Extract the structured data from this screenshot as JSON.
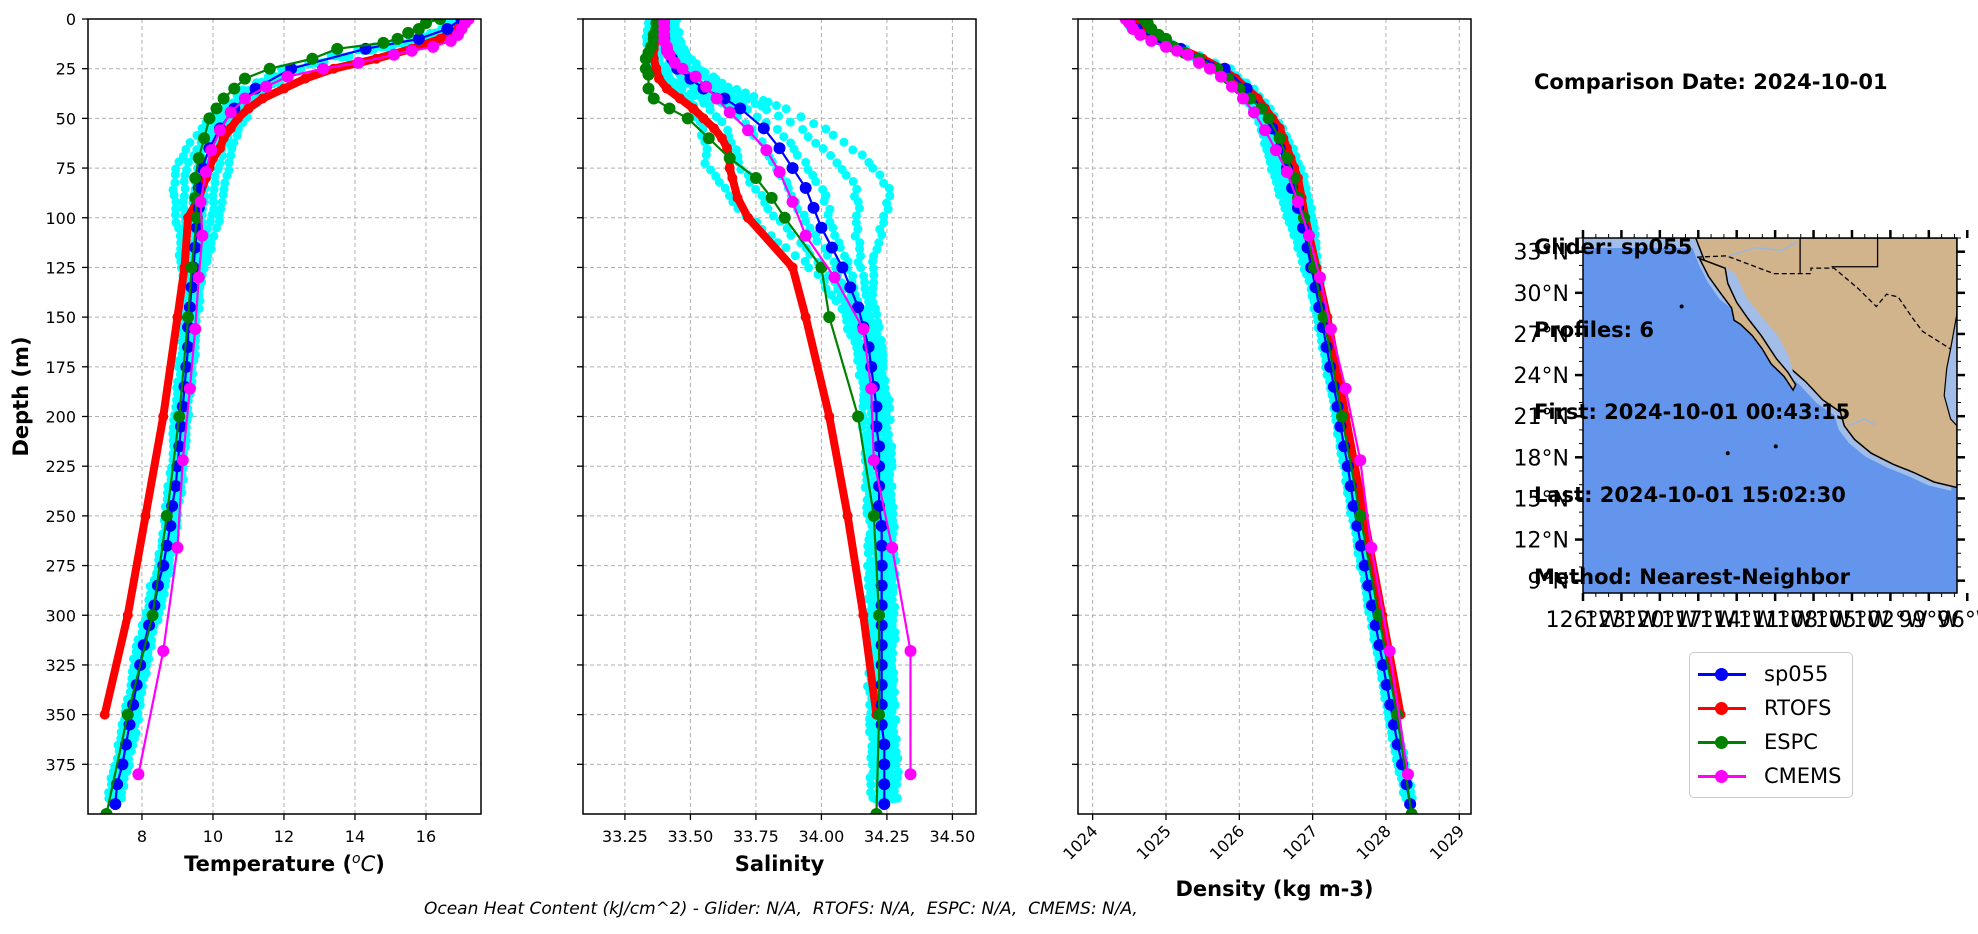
{
  "figure": {
    "info_lines": [
      "Comparison Date: 2024-10-01",
      "",
      "Glider: sp055",
      "Profiles: 6",
      "First: 2024-10-01 00:43:15",
      "Last: 2024-10-01 15:02:30",
      "Method: Nearest-Neighbor"
    ],
    "footer": "Ocean Heat Content (kJ/cm^2) - Glider: N/A,  RTOFS: N/A,  ESPC: N/A,  CMEMS: N/A,",
    "legend": [
      {
        "label": "sp055",
        "color": "#0000ff"
      },
      {
        "label": "RTOFS",
        "color": "#ff0000"
      },
      {
        "label": "ESPC",
        "color": "#008000"
      },
      {
        "label": "CMEMS",
        "color": "#ff00ff"
      }
    ],
    "colors": {
      "glider_profiles_scatter": "#00ffff",
      "grid": "#b0b0b0",
      "ocean": "#6495ed",
      "shelf": "#a2bde8",
      "land": "#d2b48c",
      "rivers": "#9ab6e0"
    }
  },
  "chart_data": [
    {
      "type": "line",
      "panel": "temperature",
      "title": "",
      "xlabel": "Temperature (°C)",
      "ylabel": "Depth (m)",
      "xlim": [
        6.48,
        17.55
      ],
      "ylim": [
        400,
        0
      ],
      "grid": true,
      "xticks": [
        8,
        10,
        12,
        14,
        16
      ],
      "xtick_labels": [
        "8",
        "10",
        "12",
        "14",
        "16"
      ],
      "yticks": [
        0,
        25,
        50,
        75,
        100,
        125,
        150,
        175,
        200,
        225,
        250,
        275,
        300,
        325,
        350,
        375
      ],
      "ytick_labels": [
        "0",
        "25",
        "50",
        "75",
        "100",
        "125",
        "150",
        "175",
        "200",
        "225",
        "250",
        "275",
        "300",
        "325",
        "350",
        "375"
      ],
      "series": [
        {
          "name": "sp055",
          "color": "#0000ff",
          "depth": [
            0,
            5,
            10,
            15,
            25,
            35,
            45,
            55,
            65,
            75,
            85,
            95,
            105,
            115,
            125,
            135,
            145,
            155,
            165,
            175,
            185,
            195,
            205,
            215,
            225,
            235,
            245,
            255,
            265,
            275,
            285,
            295,
            305,
            315,
            325,
            335,
            345,
            355,
            365,
            375,
            385,
            395
          ],
          "values": [
            17.0,
            16.6,
            15.8,
            14.3,
            12.2,
            11.2,
            10.6,
            10.2,
            9.9,
            9.7,
            9.6,
            9.6,
            9.55,
            9.5,
            9.45,
            9.4,
            9.35,
            9.3,
            9.3,
            9.25,
            9.2,
            9.15,
            9.1,
            9.05,
            9.0,
            8.95,
            8.85,
            8.8,
            8.7,
            8.6,
            8.45,
            8.35,
            8.2,
            8.05,
            7.95,
            7.85,
            7.75,
            7.65,
            7.55,
            7.45,
            7.3,
            7.25
          ]
        },
        {
          "name": "RTOFS",
          "color": "#ff0000",
          "depth": [
            0,
            5,
            10,
            15,
            20,
            25,
            30,
            35,
            40,
            45,
            50,
            55,
            60,
            65,
            70,
            75,
            80,
            90,
            100,
            125,
            150,
            200,
            250,
            300,
            350
          ],
          "values": [
            17.1,
            16.9,
            16.4,
            15.6,
            14.6,
            13.4,
            12.6,
            12.0,
            11.4,
            11.0,
            10.7,
            10.5,
            10.3,
            10.2,
            10.0,
            9.9,
            9.8,
            9.6,
            9.3,
            9.2,
            9.0,
            8.6,
            8.1,
            7.6,
            6.95
          ]
        },
        {
          "name": "ESPC",
          "color": "#008000",
          "depth": [
            0,
            2,
            5,
            7,
            10,
            12,
            15,
            20,
            25,
            30,
            35,
            40,
            45,
            50,
            60,
            70,
            80,
            90,
            100,
            125,
            150,
            200,
            250,
            300,
            350,
            400
          ],
          "values": [
            16.4,
            16.0,
            15.8,
            15.5,
            15.2,
            14.8,
            13.5,
            12.8,
            11.6,
            10.9,
            10.6,
            10.3,
            10.1,
            9.9,
            9.75,
            9.6,
            9.5,
            9.5,
            9.55,
            9.4,
            9.3,
            9.05,
            8.7,
            8.3,
            7.6,
            7.0
          ]
        },
        {
          "name": "CMEMS",
          "color": "#ff00ff",
          "depth": [
            0,
            2,
            5,
            8,
            11,
            14,
            16,
            18,
            22,
            25,
            29,
            34,
            40,
            47,
            56,
            66,
            77,
            92,
            109,
            130,
            156,
            186,
            222,
            266,
            318,
            380
          ],
          "values": [
            17.2,
            17.1,
            17.0,
            16.9,
            16.7,
            16.2,
            15.6,
            15.1,
            14.1,
            13.1,
            12.1,
            11.5,
            10.9,
            10.5,
            10.2,
            9.95,
            9.8,
            9.65,
            9.7,
            9.6,
            9.5,
            9.35,
            9.15,
            9.0,
            8.6,
            7.9
          ]
        }
      ]
    },
    {
      "type": "line",
      "panel": "salinity",
      "xlabel": "Salinity",
      "ylabel": "",
      "xlim": [
        33.09,
        34.59
      ],
      "ylim": [
        400,
        0
      ],
      "grid": true,
      "xticks": [
        33.25,
        33.5,
        33.75,
        34.0,
        34.25,
        34.5
      ],
      "xtick_labels": [
        "33.25",
        "33.50",
        "33.75",
        "34.00",
        "34.25",
        "34.50"
      ],
      "yticks": [
        0,
        25,
        50,
        75,
        100,
        125,
        150,
        175,
        200,
        225,
        250,
        275,
        300,
        325,
        350,
        375
      ],
      "series": [
        {
          "name": "sp055",
          "color": "#0000ff",
          "depth": [
            0,
            5,
            10,
            15,
            20,
            25,
            30,
            35,
            40,
            45,
            55,
            65,
            75,
            85,
            95,
            105,
            115,
            125,
            135,
            145,
            155,
            165,
            175,
            185,
            195,
            205,
            215,
            225,
            235,
            245,
            255,
            265,
            275,
            285,
            295,
            305,
            315,
            325,
            335,
            345,
            355,
            365,
            375,
            385,
            395
          ],
          "values": [
            33.39,
            33.39,
            33.4,
            33.41,
            33.43,
            33.45,
            33.5,
            33.55,
            33.63,
            33.69,
            33.78,
            33.84,
            33.89,
            33.94,
            33.97,
            34.0,
            34.04,
            34.08,
            34.11,
            34.14,
            34.16,
            34.18,
            34.19,
            34.2,
            34.21,
            34.21,
            34.22,
            34.22,
            34.22,
            34.22,
            34.23,
            34.23,
            34.23,
            34.23,
            34.23,
            34.23,
            34.23,
            34.23,
            34.23,
            34.23,
            34.23,
            34.24,
            34.24,
            34.24,
            34.24
          ]
        },
        {
          "name": "RTOFS",
          "color": "#ff0000",
          "depth": [
            0,
            5,
            10,
            15,
            20,
            25,
            30,
            35,
            40,
            45,
            50,
            55,
            60,
            65,
            70,
            75,
            80,
            90,
            100,
            125,
            150,
            200,
            250,
            300,
            350
          ],
          "values": [
            33.39,
            33.38,
            33.37,
            33.36,
            33.36,
            33.37,
            33.38,
            33.41,
            33.46,
            33.51,
            33.55,
            33.59,
            33.62,
            33.64,
            33.65,
            33.65,
            33.66,
            33.68,
            33.72,
            33.89,
            33.94,
            34.03,
            34.1,
            34.16,
            34.21
          ]
        },
        {
          "name": "ESPC",
          "color": "#008000",
          "depth": [
            0,
            2,
            5,
            8,
            10,
            14,
            17,
            20,
            25,
            28,
            35,
            40,
            45,
            50,
            60,
            70,
            80,
            90,
            100,
            125,
            150,
            200,
            250,
            300,
            350,
            400
          ],
          "values": [
            33.38,
            33.37,
            33.37,
            33.36,
            33.36,
            33.35,
            33.34,
            33.33,
            33.33,
            33.34,
            33.34,
            33.36,
            33.42,
            33.49,
            33.57,
            33.65,
            33.75,
            33.81,
            33.86,
            34.0,
            34.03,
            34.14,
            34.2,
            34.22,
            34.22,
            34.21
          ]
        },
        {
          "name": "CMEMS",
          "color": "#ff00ff",
          "depth": [
            0,
            2,
            5,
            8,
            11,
            14,
            16,
            18,
            22,
            25,
            29,
            34,
            40,
            47,
            56,
            66,
            77,
            92,
            109,
            130,
            156,
            186,
            222,
            266,
            318,
            380
          ],
          "values": [
            33.4,
            33.4,
            33.4,
            33.4,
            33.4,
            33.41,
            33.41,
            33.42,
            33.44,
            33.47,
            33.52,
            33.56,
            33.6,
            33.65,
            33.72,
            33.79,
            33.84,
            33.89,
            33.94,
            34.05,
            34.16,
            34.19,
            34.2,
            34.27,
            34.34,
            34.34
          ]
        }
      ]
    },
    {
      "type": "line",
      "panel": "density",
      "xlabel": "Density (kg m-3)",
      "ylabel": "",
      "xlim": [
        1023.8,
        1029.16
      ],
      "ylim": [
        400,
        0
      ],
      "grid": true,
      "xticks": [
        1024,
        1025,
        1026,
        1027,
        1028,
        1029
      ],
      "xtick_labels": [
        "1024",
        "1025",
        "1026",
        "1027",
        "1028",
        "1029"
      ],
      "xtick_rotation": 45,
      "yticks": [
        0,
        25,
        50,
        75,
        100,
        125,
        150,
        175,
        200,
        225,
        250,
        275,
        300,
        325,
        350,
        375
      ],
      "series": [
        {
          "name": "sp055",
          "color": "#0000ff",
          "depth": [
            0,
            5,
            10,
            15,
            25,
            35,
            45,
            55,
            65,
            75,
            85,
            95,
            105,
            115,
            125,
            135,
            145,
            155,
            165,
            175,
            185,
            195,
            205,
            215,
            225,
            235,
            245,
            255,
            265,
            275,
            285,
            295,
            305,
            315,
            325,
            335,
            345,
            355,
            365,
            375,
            385,
            395
          ],
          "values": [
            1024.5,
            1024.6,
            1024.9,
            1025.2,
            1025.8,
            1026.1,
            1026.3,
            1026.45,
            1026.55,
            1026.65,
            1026.72,
            1026.8,
            1026.87,
            1026.93,
            1026.98,
            1027.04,
            1027.09,
            1027.14,
            1027.19,
            1027.24,
            1027.29,
            1027.34,
            1027.38,
            1027.43,
            1027.48,
            1027.52,
            1027.56,
            1027.61,
            1027.66,
            1027.71,
            1027.76,
            1027.81,
            1027.86,
            1027.91,
            1027.96,
            1028.01,
            1028.06,
            1028.11,
            1028.16,
            1028.22,
            1028.28,
            1028.33
          ]
        },
        {
          "name": "RTOFS",
          "color": "#ff0000",
          "depth": [
            0,
            5,
            10,
            15,
            20,
            25,
            30,
            35,
            40,
            45,
            50,
            55,
            60,
            65,
            70,
            75,
            80,
            90,
            100,
            125,
            150,
            200,
            250,
            300,
            350
          ],
          "values": [
            1024.55,
            1024.65,
            1024.9,
            1025.2,
            1025.5,
            1025.75,
            1025.95,
            1026.1,
            1026.25,
            1026.35,
            1026.45,
            1026.55,
            1026.6,
            1026.65,
            1026.7,
            1026.75,
            1026.8,
            1026.85,
            1026.9,
            1027.05,
            1027.2,
            1027.45,
            1027.7,
            1027.95,
            1028.2
          ]
        },
        {
          "name": "ESPC",
          "color": "#008000",
          "depth": [
            0,
            2,
            5,
            8,
            10,
            14,
            17,
            20,
            25,
            30,
            35,
            40,
            45,
            50,
            60,
            70,
            80,
            90,
            100,
            125,
            150,
            200,
            250,
            300,
            350,
            400
          ],
          "values": [
            1024.7,
            1024.75,
            1024.8,
            1024.9,
            1025.0,
            1025.1,
            1025.25,
            1025.45,
            1025.7,
            1025.85,
            1026.0,
            1026.15,
            1026.3,
            1026.4,
            1026.55,
            1026.65,
            1026.75,
            1026.8,
            1026.88,
            1027.02,
            1027.15,
            1027.4,
            1027.65,
            1027.9,
            1028.15,
            1028.35
          ]
        },
        {
          "name": "CMEMS",
          "color": "#ff00ff",
          "depth": [
            0,
            2,
            5,
            8,
            11,
            14,
            16,
            18,
            22,
            25,
            29,
            34,
            40,
            47,
            56,
            66,
            77,
            92,
            109,
            130,
            156,
            186,
            222,
            266,
            318,
            380
          ],
          "values": [
            1024.45,
            1024.5,
            1024.55,
            1024.65,
            1024.8,
            1025.0,
            1025.15,
            1025.3,
            1025.45,
            1025.6,
            1025.75,
            1025.9,
            1026.05,
            1026.2,
            1026.35,
            1026.5,
            1026.65,
            1026.8,
            1026.95,
            1027.1,
            1027.25,
            1027.45,
            1027.65,
            1027.8,
            1028.05,
            1028.3
          ]
        }
      ]
    },
    {
      "type": "map",
      "panel": "location-map",
      "ytick_labels": [
        "33°N",
        "30°N",
        "27°N",
        "24°N",
        "21°N",
        "18°N",
        "15°N",
        "12°N",
        "9°N"
      ],
      "lat_ticks": [
        33,
        30,
        27,
        24,
        21,
        18,
        15,
        12,
        9
      ],
      "xtick_labels": [
        "126°W",
        "123°W",
        "120°W",
        "117°W",
        "114°W",
        "111°W",
        "108°W",
        "105°W",
        "102°W",
        "99°W",
        "96°W"
      ],
      "lon_ticks": [
        -126,
        -123,
        -120,
        -117,
        -114,
        -111,
        -108,
        -105,
        -102,
        -99,
        -96
      ],
      "lat_range": [
        8.1,
        34.0
      ],
      "lon_range": [
        -126,
        -96.8
      ]
    }
  ]
}
